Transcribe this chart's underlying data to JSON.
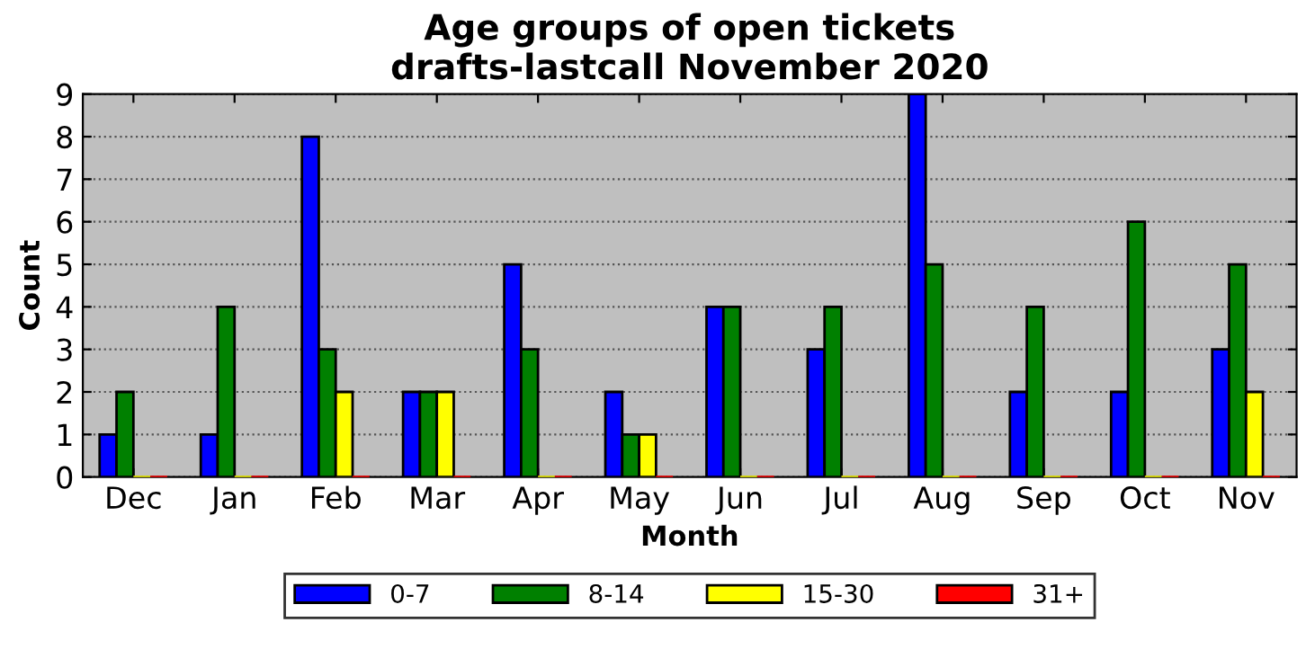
{
  "chart_data": {
    "type": "bar",
    "title": "Age groups of open tickets\ndrafts-lastcall November 2020",
    "xlabel": "Month",
    "ylabel": "Count",
    "categories": [
      "Dec",
      "Jan",
      "Feb",
      "Mar",
      "Apr",
      "May",
      "Jun",
      "Jul",
      "Aug",
      "Sep",
      "Oct",
      "Nov"
    ],
    "series": [
      {
        "name": "0-7",
        "color": "#0000ff",
        "values": [
          1,
          1,
          8,
          2,
          5,
          2,
          4,
          3,
          9,
          2,
          2,
          3
        ]
      },
      {
        "name": "8-14",
        "color": "#008000",
        "values": [
          2,
          4,
          3,
          2,
          3,
          1,
          4,
          4,
          5,
          4,
          6,
          5
        ]
      },
      {
        "name": "15-30",
        "color": "#ffff00",
        "values": [
          0,
          0,
          2,
          2,
          0,
          1,
          0,
          0,
          0,
          0,
          0,
          2
        ]
      },
      {
        "name": "31+",
        "color": "#ff0000",
        "values": [
          0,
          0,
          0,
          0,
          0,
          0,
          0,
          0,
          0,
          0,
          0,
          0
        ]
      }
    ],
    "ylim": [
      0,
      9
    ],
    "yticks": [
      0,
      1,
      2,
      3,
      4,
      5,
      6,
      7,
      8,
      9
    ],
    "grid": "y",
    "legend": "bottom"
  }
}
